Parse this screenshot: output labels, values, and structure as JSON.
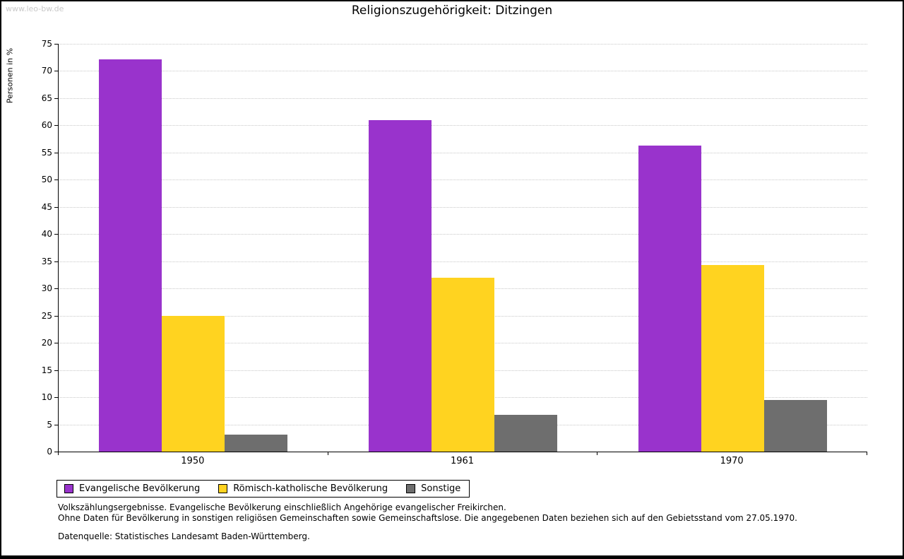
{
  "watermark": "www.leo-bw.de",
  "chart_data": {
    "type": "bar",
    "title": "Religionszugehörigkeit: Ditzingen",
    "ylabel": "Personen in %",
    "xlabel": "",
    "categories": [
      "1950",
      "1961",
      "1970"
    ],
    "series": [
      {
        "name": "Evangelische Bevölkerung",
        "color": "#9933CC",
        "values": [
          72.1,
          61.0,
          56.3
        ]
      },
      {
        "name": "Römisch-katholische Bevölkerung",
        "color": "#FFD320",
        "values": [
          24.9,
          32.0,
          34.3
        ]
      },
      {
        "name": "Sonstige",
        "color": "#6E6E6E",
        "values": [
          3.1,
          6.8,
          9.5
        ]
      }
    ],
    "ylim": [
      0,
      75
    ],
    "ytick_step": 5,
    "grid": true,
    "legend_position": "bottom"
  },
  "footnotes": {
    "line1": "Volkszählungsergebnisse. Evangelische Bevölkerung einschließlich Angehörige evangelischer Freikirchen.",
    "line2": "Ohne Daten für Bevölkerung in sonstigen religiösen Gemeinschaften sowie Gemeinschaftslose. Die angegebenen Daten beziehen sich auf den Gebietsstand vom 27.05.1970.",
    "source": "Datenquelle: Statistisches Landesamt Baden-Württemberg."
  }
}
